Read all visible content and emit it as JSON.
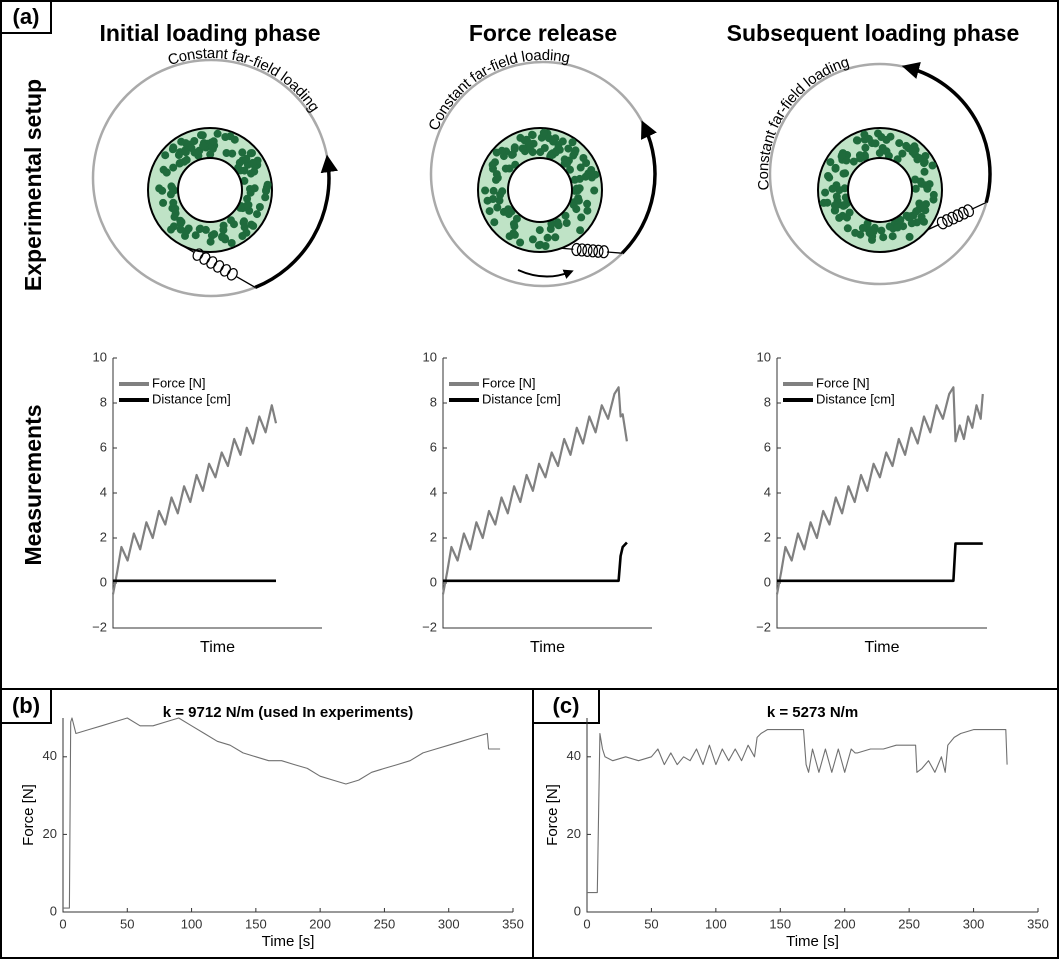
{
  "figure": {
    "panel_labels": [
      "(a)",
      "(b)",
      "(c)"
    ],
    "column_titles": [
      "Initial loading phase",
      "Force release",
      "Subsequent loading phase"
    ],
    "row_labels": [
      "Experimental setup",
      "Measurements"
    ],
    "loading_labels": [
      "Constant far-field loading",
      "Constant far-field loading",
      "Constant far-field loading"
    ]
  },
  "chart_data": [
    {
      "type": "line",
      "xlabel": "Time",
      "xlim": [
        0,
        100
      ],
      "ylim": [
        -2,
        10
      ],
      "yticks": [
        {
          "value": -2,
          "label": "−2"
        },
        0,
        2,
        4,
        6,
        8,
        10
      ],
      "legend": "upper left",
      "series": [
        {
          "name": "Force [N]",
          "color": "#808080",
          "x": [
            0,
            2,
            4,
            7,
            10,
            13,
            16,
            19,
            22,
            25,
            28,
            31,
            34,
            37,
            40,
            43,
            46,
            49,
            52,
            55,
            58,
            61,
            64,
            67,
            70,
            73,
            76,
            78
          ],
          "values": [
            -0.5,
            0.5,
            1.6,
            1.0,
            2.2,
            1.5,
            2.7,
            2.0,
            3.2,
            2.6,
            3.8,
            3.1,
            4.3,
            3.6,
            4.8,
            4.1,
            5.3,
            4.7,
            5.8,
            5.2,
            6.4,
            5.7,
            6.9,
            6.2,
            7.4,
            6.7,
            7.9,
            7.1
          ]
        },
        {
          "name": "Distance [cm]",
          "color": "#000000",
          "x": [
            0,
            78
          ],
          "values": [
            0.1,
            0.1
          ]
        }
      ]
    },
    {
      "type": "line",
      "xlabel": "Time",
      "xlim": [
        0,
        100
      ],
      "ylim": [
        -2,
        10
      ],
      "yticks": [
        {
          "value": -2,
          "label": "−2"
        },
        0,
        2,
        4,
        6,
        8,
        10
      ],
      "legend": "upper left",
      "series": [
        {
          "name": "Force [N]",
          "color": "#808080",
          "x": [
            0,
            2,
            4,
            7,
            10,
            13,
            16,
            19,
            22,
            25,
            28,
            31,
            34,
            37,
            40,
            43,
            46,
            49,
            52,
            55,
            58,
            61,
            64,
            67,
            70,
            73,
            76,
            79,
            82,
            84,
            85,
            86,
            88
          ],
          "values": [
            -0.5,
            0.5,
            1.6,
            1.0,
            2.2,
            1.5,
            2.7,
            2.0,
            3.2,
            2.6,
            3.8,
            3.1,
            4.3,
            3.6,
            4.8,
            4.1,
            5.3,
            4.7,
            5.8,
            5.2,
            6.4,
            5.7,
            6.9,
            6.2,
            7.4,
            6.7,
            7.9,
            7.3,
            8.4,
            8.7,
            7.4,
            7.5,
            6.3
          ]
        },
        {
          "name": "Distance [cm]",
          "color": "#000000",
          "x": [
            0,
            84,
            85,
            86,
            88
          ],
          "values": [
            0.1,
            0.1,
            1.2,
            1.6,
            1.8
          ]
        }
      ]
    },
    {
      "type": "line",
      "xlabel": "Time",
      "xlim": [
        0,
        100
      ],
      "ylim": [
        -2,
        10
      ],
      "yticks": [
        {
          "value": -2,
          "label": "−2"
        },
        0,
        2,
        4,
        6,
        8,
        10
      ],
      "legend": "upper left",
      "series": [
        {
          "name": "Force [N]",
          "color": "#808080",
          "x": [
            0,
            2,
            4,
            7,
            10,
            13,
            16,
            19,
            22,
            25,
            28,
            31,
            34,
            37,
            40,
            43,
            46,
            49,
            52,
            55,
            58,
            61,
            64,
            67,
            70,
            73,
            76,
            79,
            82,
            84,
            85,
            87,
            89,
            91,
            93,
            95,
            97,
            98
          ],
          "values": [
            -0.5,
            0.5,
            1.6,
            1.0,
            2.2,
            1.5,
            2.7,
            2.0,
            3.2,
            2.6,
            3.8,
            3.1,
            4.3,
            3.6,
            4.8,
            4.1,
            5.3,
            4.7,
            5.8,
            5.2,
            6.4,
            5.7,
            6.9,
            6.2,
            7.4,
            6.7,
            7.9,
            7.3,
            8.4,
            8.7,
            6.3,
            7.0,
            6.4,
            7.4,
            6.9,
            7.9,
            7.3,
            8.4
          ]
        },
        {
          "name": "Distance [cm]",
          "color": "#000000",
          "x": [
            0,
            84,
            85,
            98
          ],
          "values": [
            0.1,
            0.1,
            1.75,
            1.75
          ]
        }
      ]
    },
    {
      "type": "line",
      "title": "k = 9712 N/m (used In experiments)",
      "xlabel": "Time [s]",
      "ylabel": "Force [N]",
      "xlim": [
        0,
        350
      ],
      "ylim": [
        0,
        50
      ],
      "xticks": [
        0,
        50,
        100,
        150,
        200,
        250,
        300,
        350
      ],
      "yticks": [
        0,
        20,
        40
      ],
      "x": [
        0,
        5,
        6,
        7,
        10,
        20,
        30,
        40,
        50,
        60,
        70,
        80,
        90,
        100,
        110,
        120,
        130,
        140,
        150,
        160,
        170,
        180,
        190,
        200,
        210,
        220,
        230,
        240,
        250,
        260,
        270,
        280,
        290,
        300,
        310,
        320,
        330,
        331,
        340
      ],
      "series": [
        {
          "color": "#707070",
          "values": [
            1,
            1,
            49,
            50,
            46,
            47,
            48,
            49,
            50,
            48,
            48,
            49,
            50,
            48,
            46,
            44,
            43,
            41,
            40,
            39,
            39,
            38,
            37,
            35,
            34,
            33,
            34,
            36,
            37,
            38,
            39,
            41,
            42,
            43,
            44,
            45,
            46,
            42,
            42
          ]
        }
      ]
    },
    {
      "type": "line",
      "title": "k = 5273 N/m",
      "xlabel": "Time [s]",
      "ylabel": "Force [N]",
      "xlim": [
        0,
        350
      ],
      "ylim": [
        0,
        50
      ],
      "xticks": [
        0,
        50,
        100,
        150,
        200,
        250,
        300,
        350
      ],
      "yticks": [
        0,
        20,
        40
      ],
      "x": [
        0,
        8,
        10,
        12,
        14,
        20,
        30,
        40,
        50,
        55,
        60,
        65,
        70,
        75,
        80,
        85,
        90,
        95,
        100,
        105,
        110,
        115,
        120,
        125,
        130,
        132,
        135,
        140,
        150,
        160,
        168,
        170,
        172,
        175,
        180,
        185,
        190,
        195,
        200,
        205,
        208,
        210,
        220,
        230,
        240,
        250,
        255,
        256,
        260,
        265,
        270,
        275,
        278,
        280,
        285,
        290,
        300,
        310,
        320,
        325,
        326
      ],
      "series": [
        {
          "color": "#707070",
          "values": [
            5,
            5,
            46,
            42,
            40,
            39,
            40,
            39,
            40,
            42,
            38,
            41,
            38,
            40,
            39,
            42,
            38,
            43,
            38,
            42,
            39,
            42,
            39,
            43,
            40,
            45,
            46,
            47,
            47,
            47,
            47,
            38,
            36,
            42,
            36,
            42,
            36,
            42,
            36,
            42,
            41,
            41,
            42,
            42,
            43,
            43,
            43,
            36,
            37,
            39,
            36,
            40,
            36,
            43,
            45,
            46,
            47,
            47,
            47,
            47,
            38
          ]
        }
      ]
    }
  ]
}
